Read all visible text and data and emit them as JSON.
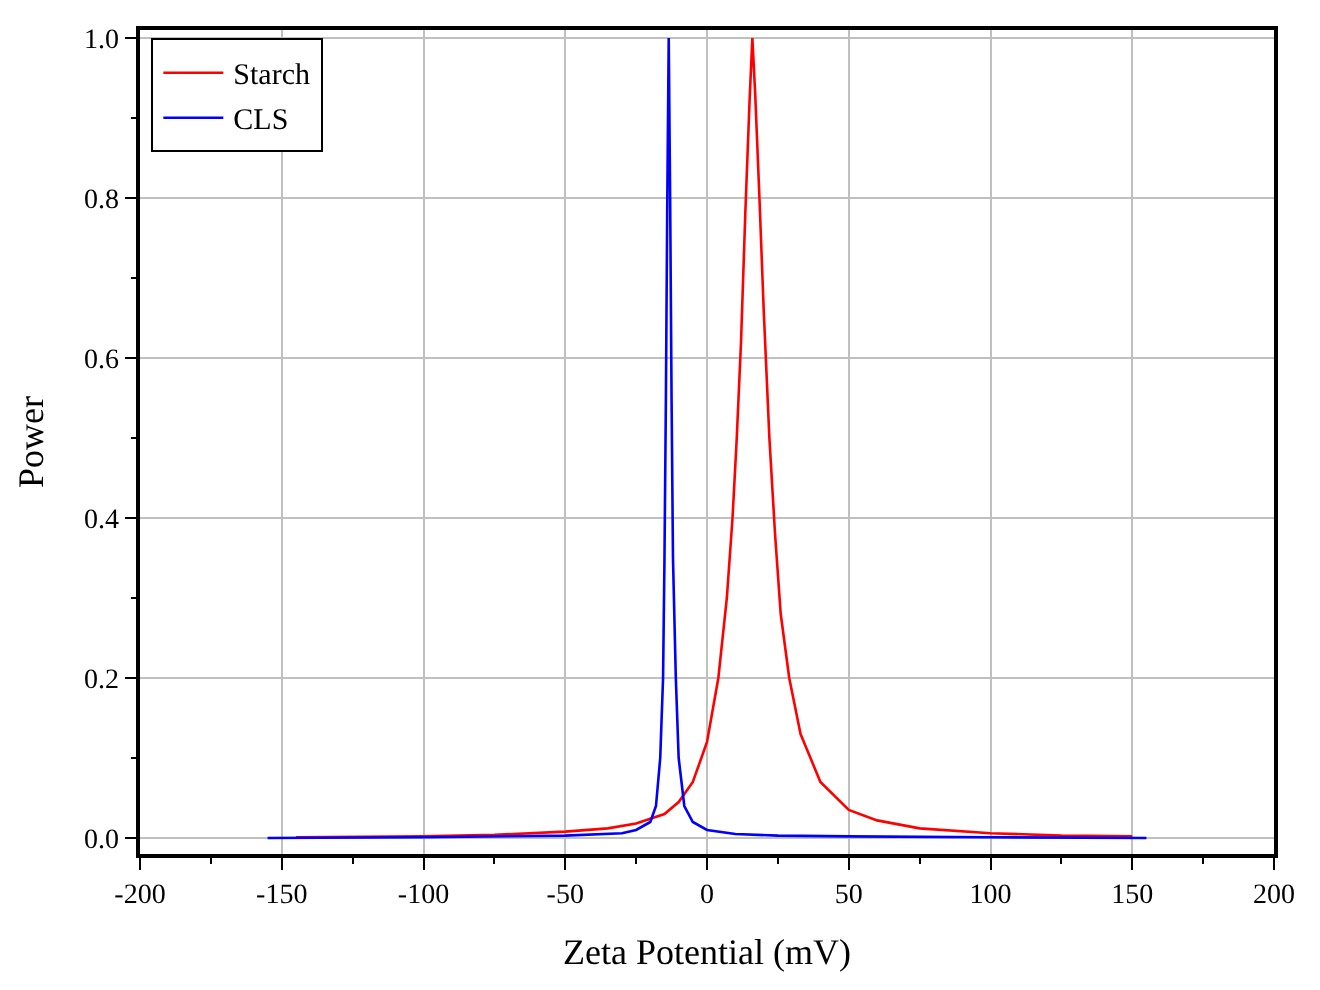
{
  "chart_data": {
    "type": "line",
    "xlabel": "Zeta Potential (mV)",
    "ylabel": "Power",
    "xlim": [
      -200,
      200
    ],
    "xticks": [
      -200,
      -150,
      -100,
      -50,
      0,
      50,
      100,
      150,
      200
    ],
    "ylim": [
      -0.02,
      1.01
    ],
    "yticks": [
      {
        "value": 0,
        "label": "0.0"
      },
      0.2,
      0.4,
      0.6,
      0.8,
      {
        "value": 1,
        "label": "1.0"
      }
    ],
    "grid": true,
    "legend": "top left",
    "marker": "none",
    "line_style": "solid",
    "series": [
      {
        "name": "Starch",
        "color": "#ff0000",
        "x": [
          -145,
          -100,
          -75,
          -50,
          -35,
          -25,
          -20,
          -15,
          -10,
          -5,
          0,
          4,
          7,
          9,
          10.5,
          12,
          13.5,
          15,
          16,
          17,
          18.5,
          20,
          22,
          24,
          26,
          29,
          33,
          40,
          50,
          60,
          75,
          100,
          125,
          150
        ],
        "values": [
          0.001,
          0.002,
          0.004,
          0.008,
          0.012,
          0.018,
          0.024,
          0.03,
          0.045,
          0.07,
          0.12,
          0.2,
          0.3,
          0.4,
          0.5,
          0.62,
          0.78,
          0.92,
          1.0,
          0.93,
          0.8,
          0.66,
          0.5,
          0.38,
          0.28,
          0.2,
          0.13,
          0.07,
          0.035,
          0.022,
          0.012,
          0.006,
          0.003,
          0.002
        ]
      },
      {
        "name": "CLS",
        "color": "#0000ff",
        "x": [
          -155,
          -100,
          -50,
          -30,
          -25,
          -20,
          -18,
          -16.5,
          -15.5,
          -15,
          -14.5,
          -14,
          -13.5,
          -13,
          -12.5,
          -12,
          -11,
          -10,
          -8,
          -5,
          0,
          10,
          25,
          50,
          100,
          155
        ],
        "values": [
          0,
          0.001,
          0.003,
          0.006,
          0.01,
          0.02,
          0.04,
          0.1,
          0.2,
          0.35,
          0.55,
          0.8,
          1.0,
          0.8,
          0.55,
          0.35,
          0.2,
          0.1,
          0.04,
          0.02,
          0.01,
          0.005,
          0.003,
          0.002,
          0.001,
          0
        ]
      }
    ]
  }
}
